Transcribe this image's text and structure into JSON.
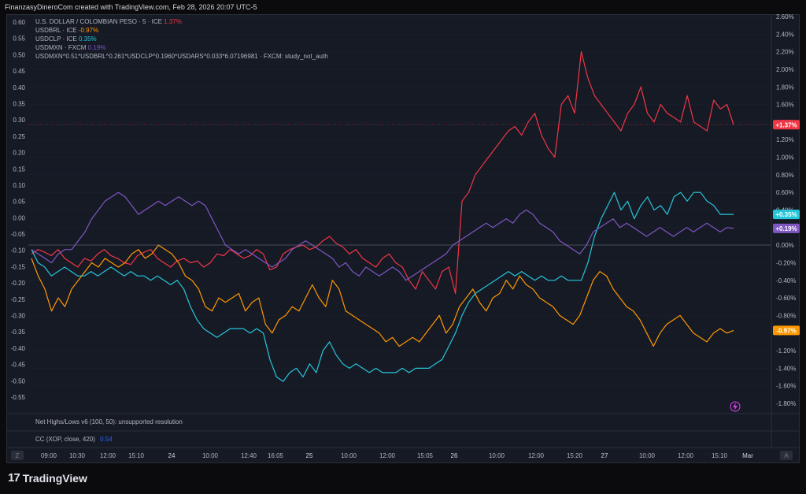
{
  "header": {
    "text": "FinanzasyDineroCom created with TradingView.com, Feb 28, 2026 20:07 UTC-5"
  },
  "legend": [
    {
      "label": "U.S. DOLLAR / COLOMBIAN PESO · 5 · ICE",
      "change": "1.37%",
      "color": "#f23645"
    },
    {
      "label": "USDBRL · ICE",
      "change": "-0.97%",
      "color": "#ff9800"
    },
    {
      "label": "USDCLP · ICE",
      "change": "0.35%",
      "color": "#26c6da"
    },
    {
      "label": "USDMXN · FXCM",
      "change": "0.19%",
      "color": "#7e57c2"
    },
    {
      "label": "USDMXN^0.51*USDBRL^0.261*USDCLP^0.1960*USDARS^0.033*6.07196981 · FXCM: study_not_auth",
      "change": "",
      "color": "#b2b5be"
    }
  ],
  "indicators": {
    "net_highs": "Net Highs/Lows v6 (100, 50): unsupported resolution",
    "cc_label": "CC (XOP, close, 420)",
    "cc_value": "0.54",
    "cc_color": "#2962ff"
  },
  "nav": {
    "left_btn": "Z",
    "right_btn": "A"
  },
  "brand": {
    "logo": "17",
    "name": "TradingView"
  },
  "chart_data": {
    "type": "line",
    "left_axis": {
      "ticks": [
        "0.60",
        "0.55",
        "0.50",
        "0.45",
        "0.40",
        "0.35",
        "0.30",
        "0.25",
        "0.20",
        "0.15",
        "0.10",
        "0.05",
        "0.00",
        "-0.05",
        "-0.10",
        "-0.15",
        "-0.20",
        "-0.25",
        "-0.30",
        "-0.35",
        "-0.40",
        "-0.45",
        "-0.50",
        "-0.55"
      ],
      "ylim": [
        -0.55,
        0.6
      ]
    },
    "right_axis": {
      "ticks": [
        "2.60%",
        "2.40%",
        "2.20%",
        "2.00%",
        "1.80%",
        "1.60%",
        "1.40%",
        "1.20%",
        "1.00%",
        "0.80%",
        "0.60%",
        "0.40%",
        "0.20%",
        "0.00%",
        "-0.20%",
        "-0.40%",
        "-0.60%",
        "-0.80%",
        "-1.00%",
        "-1.20%",
        "-1.40%",
        "-1.60%",
        "-1.80%"
      ],
      "ylim": [
        -1.8,
        2.6
      ]
    },
    "x_ticks": [
      "09:00",
      "10:30",
      "12:00",
      "15:10",
      "24",
      "10:00",
      "12:40",
      "16:05",
      "25",
      "10:00",
      "12:00",
      "15:05",
      "26",
      "10:00",
      "12:00",
      "15:20",
      "27",
      "10:00",
      "12:00",
      "15:10",
      "Mar"
    ],
    "last_price_labels": [
      {
        "text": "+1.37%",
        "value": 1.37,
        "color": "#f23645"
      },
      {
        "text": "+0.35%",
        "value": 0.35,
        "color": "#26c6da"
      },
      {
        "text": "+0.19%",
        "value": 0.19,
        "color": "#7e57c2"
      },
      {
        "text": "-0.97%",
        "value": -0.97,
        "color": "#ff9800"
      }
    ],
    "series": [
      {
        "name": "U.S. DOLLAR / COLOMBIAN PESO",
        "color": "#f23645",
        "axis": "right",
        "values": [
          -0.1,
          -0.05,
          -0.08,
          -0.12,
          -0.05,
          -0.15,
          -0.2,
          -0.25,
          -0.15,
          -0.18,
          -0.1,
          -0.05,
          -0.12,
          -0.15,
          -0.2,
          -0.22,
          -0.12,
          -0.08,
          -0.05,
          -0.15,
          -0.2,
          -0.25,
          -0.18,
          -0.15,
          -0.2,
          -0.18,
          -0.25,
          -0.2,
          -0.1,
          -0.12,
          -0.05,
          -0.1,
          -0.15,
          -0.12,
          -0.05,
          -0.1,
          -0.28,
          -0.25,
          -0.1,
          -0.05,
          -0.02,
          0.0,
          -0.05,
          -0.02,
          0.05,
          0.1,
          0.02,
          -0.02,
          -0.1,
          -0.05,
          -0.15,
          -0.2,
          -0.25,
          -0.15,
          -0.1,
          -0.2,
          -0.25,
          -0.4,
          -0.5,
          -0.3,
          -0.4,
          -0.5,
          -0.3,
          -0.25,
          -0.55,
          0.5,
          0.6,
          0.8,
          0.9,
          1.0,
          1.1,
          1.2,
          1.3,
          1.35,
          1.25,
          1.4,
          1.5,
          1.25,
          1.1,
          1.0,
          1.6,
          1.7,
          1.5,
          2.2,
          1.9,
          1.7,
          1.6,
          1.5,
          1.4,
          1.3,
          1.5,
          1.6,
          1.8,
          1.5,
          1.4,
          1.6,
          1.5,
          1.45,
          1.4,
          1.7,
          1.4,
          1.35,
          1.3,
          1.65,
          1.55,
          1.6,
          1.37
        ]
      },
      {
        "name": "USDBRL",
        "color": "#ff9800",
        "axis": "right",
        "values": [
          -0.15,
          -0.35,
          -0.5,
          -0.75,
          -0.6,
          -0.7,
          -0.5,
          -0.4,
          -0.3,
          -0.2,
          -0.25,
          -0.15,
          -0.2,
          -0.25,
          -0.2,
          -0.1,
          -0.05,
          -0.15,
          -0.1,
          0.0,
          -0.05,
          -0.1,
          -0.2,
          -0.35,
          -0.4,
          -0.5,
          -0.7,
          -0.75,
          -0.6,
          -0.65,
          -0.6,
          -0.55,
          -0.75,
          -0.65,
          -0.6,
          -0.9,
          -1.0,
          -0.85,
          -0.8,
          -0.7,
          -0.75,
          -0.6,
          -0.45,
          -0.6,
          -0.7,
          -0.4,
          -0.5,
          -0.75,
          -0.8,
          -0.85,
          -0.9,
          -0.95,
          -1.0,
          -1.1,
          -1.05,
          -1.15,
          -1.1,
          -1.05,
          -1.1,
          -1.0,
          -0.9,
          -0.8,
          -1.0,
          -0.9,
          -0.7,
          -0.6,
          -0.5,
          -0.65,
          -0.75,
          -0.6,
          -0.55,
          -0.4,
          -0.5,
          -0.35,
          -0.45,
          -0.5,
          -0.6,
          -0.65,
          -0.7,
          -0.8,
          -0.85,
          -0.9,
          -0.8,
          -0.6,
          -0.4,
          -0.3,
          -0.35,
          -0.5,
          -0.6,
          -0.7,
          -0.75,
          -0.85,
          -1.0,
          -1.15,
          -1.0,
          -0.9,
          -0.85,
          -0.8,
          -0.9,
          -1.0,
          -1.05,
          -1.1,
          -1.0,
          -0.95,
          -1.0,
          -0.97
        ]
      },
      {
        "name": "USDCLP",
        "color": "#26c6da",
        "axis": "right",
        "values": [
          -0.05,
          -0.2,
          -0.25,
          -0.35,
          -0.3,
          -0.25,
          -0.3,
          -0.35,
          -0.35,
          -0.3,
          -0.35,
          -0.3,
          -0.25,
          -0.3,
          -0.35,
          -0.3,
          -0.35,
          -0.35,
          -0.4,
          -0.35,
          -0.4,
          -0.45,
          -0.4,
          -0.5,
          -0.7,
          -0.85,
          -0.95,
          -1.0,
          -1.05,
          -1.0,
          -0.95,
          -0.95,
          -0.95,
          -1.0,
          -0.95,
          -1.0,
          -1.3,
          -1.5,
          -1.55,
          -1.45,
          -1.4,
          -1.5,
          -1.35,
          -1.45,
          -1.2,
          -1.1,
          -1.25,
          -1.35,
          -1.4,
          -1.35,
          -1.4,
          -1.45,
          -1.4,
          -1.45,
          -1.45,
          -1.45,
          -1.4,
          -1.45,
          -1.4,
          -1.4,
          -1.4,
          -1.35,
          -1.3,
          -1.15,
          -1.0,
          -0.8,
          -0.65,
          -0.55,
          -0.5,
          -0.45,
          -0.4,
          -0.35,
          -0.3,
          -0.35,
          -0.3,
          -0.35,
          -0.4,
          -0.35,
          -0.4,
          -0.4,
          -0.35,
          -0.4,
          -0.4,
          -0.4,
          -0.2,
          0.1,
          0.3,
          0.45,
          0.6,
          0.4,
          0.5,
          0.3,
          0.45,
          0.55,
          0.4,
          0.45,
          0.35,
          0.55,
          0.6,
          0.5,
          0.6,
          0.6,
          0.5,
          0.45,
          0.35,
          0.35,
          0.35
        ]
      },
      {
        "name": "USDMXN",
        "color": "#7e57c2",
        "axis": "right",
        "values": [
          -0.05,
          -0.1,
          -0.15,
          -0.2,
          -0.1,
          -0.05,
          -0.05,
          0.05,
          0.15,
          0.3,
          0.4,
          0.5,
          0.55,
          0.6,
          0.55,
          0.45,
          0.35,
          0.4,
          0.45,
          0.5,
          0.45,
          0.5,
          0.55,
          0.5,
          0.45,
          0.5,
          0.45,
          0.3,
          0.15,
          0.0,
          -0.05,
          -0.1,
          -0.05,
          -0.1,
          -0.15,
          -0.2,
          -0.25,
          -0.2,
          -0.15,
          -0.05,
          0.0,
          0.05,
          0.0,
          -0.05,
          -0.1,
          -0.15,
          -0.25,
          -0.2,
          -0.3,
          -0.35,
          -0.25,
          -0.3,
          -0.35,
          -0.3,
          -0.25,
          -0.3,
          -0.4,
          -0.35,
          -0.3,
          -0.25,
          -0.2,
          -0.15,
          -0.1,
          0.0,
          0.05,
          0.1,
          0.15,
          0.2,
          0.25,
          0.2,
          0.25,
          0.3,
          0.25,
          0.35,
          0.4,
          0.35,
          0.25,
          0.2,
          0.15,
          0.05,
          0.0,
          -0.05,
          -0.1,
          0.0,
          0.15,
          0.2,
          0.25,
          0.3,
          0.2,
          0.25,
          0.2,
          0.15,
          0.1,
          0.15,
          0.2,
          0.15,
          0.1,
          0.15,
          0.2,
          0.15,
          0.2,
          0.25,
          0.2,
          0.15,
          0.2,
          0.19
        ]
      }
    ]
  }
}
